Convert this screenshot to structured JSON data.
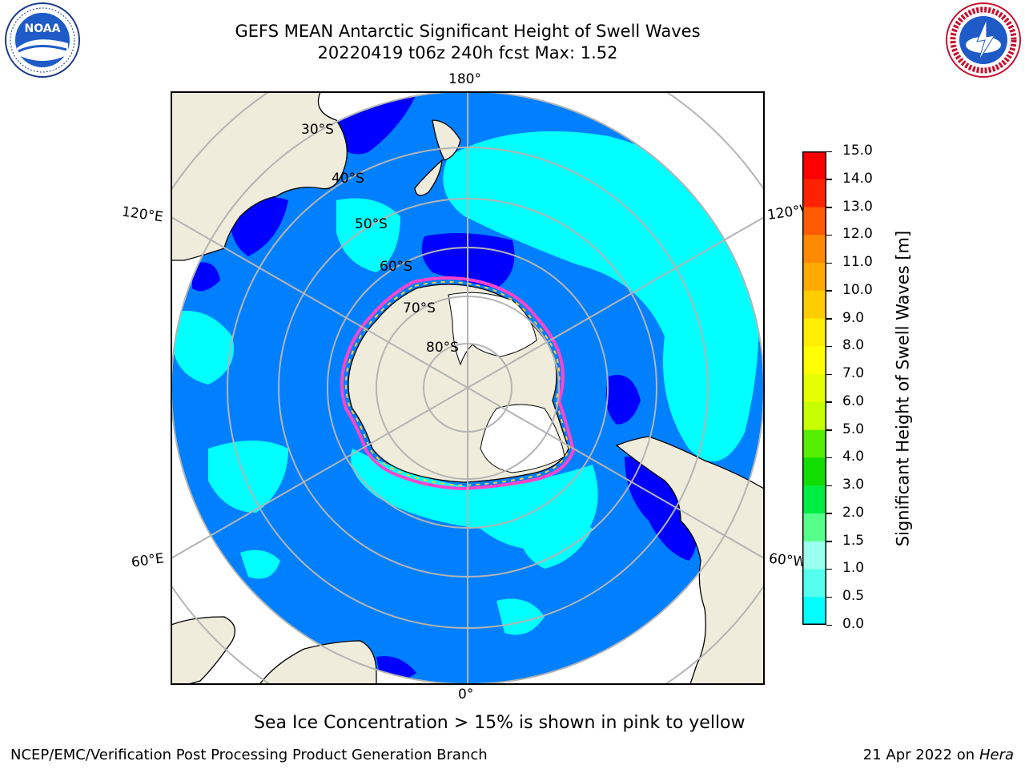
{
  "title_line1": "GEFS MEAN Antarctic Significant Height of Swell Waves",
  "title_line2": "20220419 t06z 240h fcst   Max: 1.52",
  "longitude_labels": {
    "top": "180°",
    "bottom": "0°",
    "upper_left": "120°E",
    "upper_right": "120°W",
    "lower_left": "60°E",
    "lower_right": "60°W"
  },
  "latitude_labels": [
    "30°S",
    "40°S",
    "50°S",
    "60°S",
    "70°S",
    "80°S"
  ],
  "colorbar": {
    "label": "Significant Height of Swell Waves [m]",
    "ticks": [
      "15.0",
      "14.0",
      "13.0",
      "12.0",
      "11.0",
      "10.0",
      "9.0",
      "8.0",
      "7.0",
      "6.0",
      "5.0",
      "4.0",
      "3.0",
      "2.0",
      "1.5",
      "1.0",
      "0.5",
      "0.0"
    ],
    "colors": [
      "#ff0000",
      "#ff2200",
      "#ff5a00",
      "#ff8a00",
      "#ffaa00",
      "#ffcc00",
      "#ffee00",
      "#ffff00",
      "#e6ff00",
      "#c8ff00",
      "#55ee00",
      "#11dd00",
      "#00ee44",
      "#55ff88",
      "#99ffee",
      "#55ffee",
      "#00ffff",
      "#0080ff",
      "#0000ff"
    ]
  },
  "colors": {
    "land": "#efecdc",
    "ice_land": "#ffffff",
    "ocean_low": "#0080ff",
    "ocean_mid": "#00ffff",
    "ocean_very_low": "#0000ff",
    "ice_edge": "#ff44cc",
    "grid": "#b4b4b4"
  },
  "note": "Sea Ice Concentration > 15% is shown in pink to yellow",
  "footer_left": "NCEP/EMC/Verification Post Processing Product Generation Branch",
  "footer_right_date": "21 Apr 2022 on ",
  "footer_right_machine": "Hera"
}
